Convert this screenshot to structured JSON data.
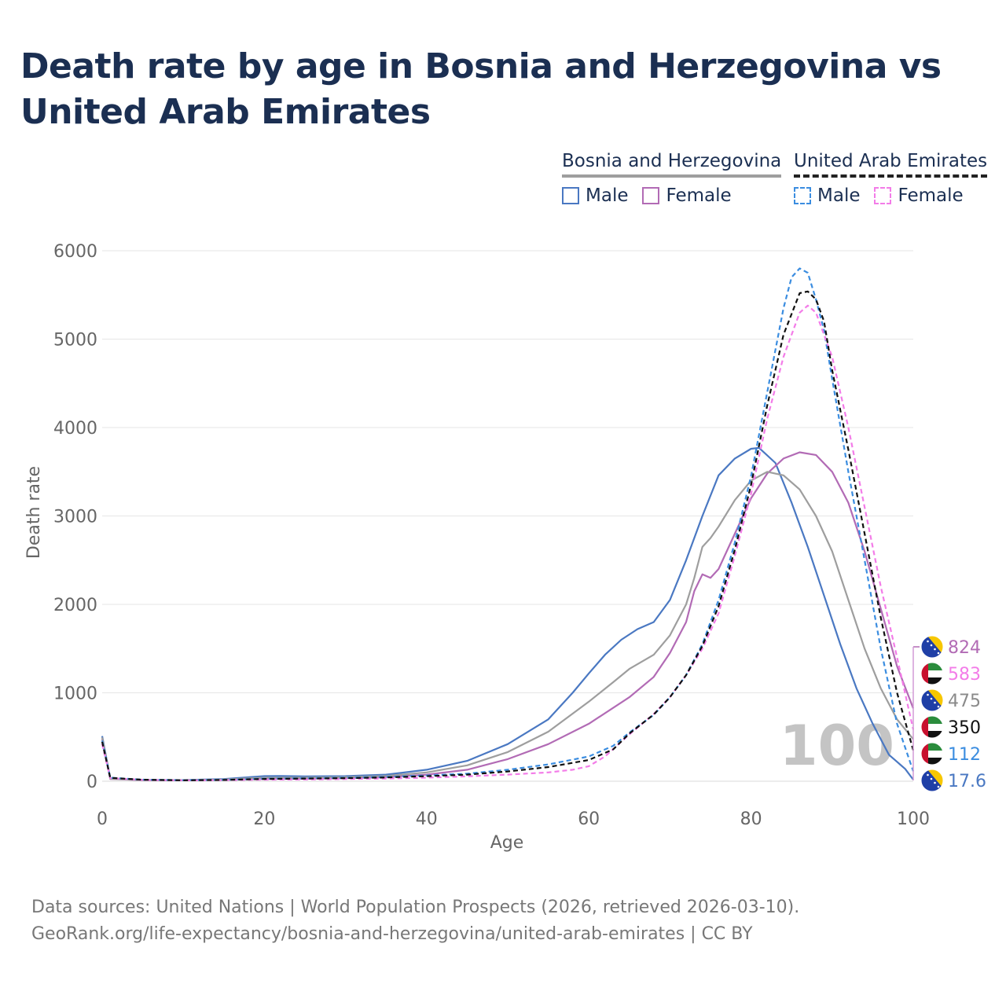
{
  "title": "Death rate by age in Bosnia and Herzegovina vs United Arab Emirates",
  "legend": {
    "bih": {
      "country": "Bosnia and Herzegovina",
      "male": "Male",
      "female": "Female"
    },
    "uae": {
      "country": "United Arab Emirates",
      "male": "Male",
      "female": "Female"
    }
  },
  "footer": {
    "line1": "Data sources: United Nations | World Population Prospects (2026, retrieved 2026-03-10).",
    "line2": "GeoRank.org/life-expectancy/bosnia-and-herzegovina/united-arab-emirates | CC BY"
  },
  "chart_data": {
    "type": "line",
    "title": "Death rate by age in Bosnia and Herzegovina vs United Arab Emirates",
    "xlabel": "Age",
    "ylabel": "Death rate",
    "xlim": [
      0,
      100
    ],
    "ylim": [
      0,
      6000
    ],
    "xticks": [
      0,
      20,
      40,
      60,
      80,
      100
    ],
    "yticks": [
      0,
      1000,
      2000,
      3000,
      4000,
      5000,
      6000
    ],
    "grid": true,
    "age_annotation": "100",
    "series": [
      {
        "name": "Bosnia and Herzegovina Male",
        "color": "#4a78c2",
        "dashed": false,
        "points": [
          [
            0,
            510
          ],
          [
            1,
            30
          ],
          [
            5,
            15
          ],
          [
            10,
            12
          ],
          [
            15,
            25
          ],
          [
            20,
            58
          ],
          [
            22,
            60
          ],
          [
            25,
            55
          ],
          [
            30,
            58
          ],
          [
            35,
            75
          ],
          [
            40,
            130
          ],
          [
            45,
            230
          ],
          [
            50,
            420
          ],
          [
            55,
            700
          ],
          [
            58,
            1000
          ],
          [
            60,
            1220
          ],
          [
            62,
            1430
          ],
          [
            64,
            1600
          ],
          [
            66,
            1720
          ],
          [
            68,
            1800
          ],
          [
            70,
            2050
          ],
          [
            72,
            2500
          ],
          [
            74,
            3000
          ],
          [
            76,
            3460
          ],
          [
            78,
            3650
          ],
          [
            80,
            3760
          ],
          [
            81,
            3770
          ],
          [
            83,
            3600
          ],
          [
            85,
            3150
          ],
          [
            87,
            2650
          ],
          [
            89,
            2100
          ],
          [
            91,
            1550
          ],
          [
            93,
            1050
          ],
          [
            95,
            650
          ],
          [
            97,
            300
          ],
          [
            99,
            140
          ],
          [
            100,
            18
          ]
        ],
        "end_value": "17.6"
      },
      {
        "name": "Bosnia and Herzegovina Female",
        "color": "#b26bb5",
        "dashed": false,
        "points": [
          [
            0,
            480
          ],
          [
            1,
            25
          ],
          [
            5,
            12
          ],
          [
            10,
            10
          ],
          [
            15,
            15
          ],
          [
            20,
            25
          ],
          [
            25,
            28
          ],
          [
            30,
            35
          ],
          [
            35,
            45
          ],
          [
            40,
            75
          ],
          [
            45,
            130
          ],
          [
            50,
            250
          ],
          [
            55,
            420
          ],
          [
            60,
            650
          ],
          [
            65,
            950
          ],
          [
            68,
            1180
          ],
          [
            70,
            1450
          ],
          [
            72,
            1800
          ],
          [
            73,
            2150
          ],
          [
            74,
            2340
          ],
          [
            75,
            2300
          ],
          [
            76,
            2400
          ],
          [
            78,
            2800
          ],
          [
            80,
            3200
          ],
          [
            82,
            3480
          ],
          [
            84,
            3650
          ],
          [
            86,
            3720
          ],
          [
            88,
            3690
          ],
          [
            90,
            3500
          ],
          [
            92,
            3150
          ],
          [
            94,
            2600
          ],
          [
            96,
            1950
          ],
          [
            98,
            1300
          ],
          [
            100,
            824
          ]
        ],
        "end_value": "824"
      },
      {
        "name": "Bosnia and Herzegovina Total",
        "color": "#9e9e9e",
        "dashed": false,
        "points": [
          [
            0,
            495
          ],
          [
            1,
            27
          ],
          [
            5,
            14
          ],
          [
            10,
            11
          ],
          [
            15,
            20
          ],
          [
            20,
            42
          ],
          [
            25,
            42
          ],
          [
            30,
            47
          ],
          [
            35,
            60
          ],
          [
            40,
            100
          ],
          [
            45,
            180
          ],
          [
            50,
            330
          ],
          [
            55,
            560
          ],
          [
            60,
            900
          ],
          [
            63,
            1120
          ],
          [
            65,
            1270
          ],
          [
            68,
            1430
          ],
          [
            70,
            1650
          ],
          [
            72,
            2000
          ],
          [
            73,
            2300
          ],
          [
            74,
            2650
          ],
          [
            75,
            2750
          ],
          [
            76,
            2880
          ],
          [
            78,
            3180
          ],
          [
            80,
            3400
          ],
          [
            82,
            3500
          ],
          [
            84,
            3460
          ],
          [
            86,
            3300
          ],
          [
            88,
            3000
          ],
          [
            90,
            2600
          ],
          [
            92,
            2050
          ],
          [
            94,
            1500
          ],
          [
            96,
            1050
          ],
          [
            98,
            700
          ],
          [
            100,
            475
          ]
        ],
        "end_value": "475"
      },
      {
        "name": "United Arab Emirates Male",
        "color": "#3b8de0",
        "dashed": true,
        "points": [
          [
            0,
            460
          ],
          [
            1,
            40
          ],
          [
            5,
            18
          ],
          [
            10,
            12
          ],
          [
            15,
            15
          ],
          [
            20,
            30
          ],
          [
            25,
            35
          ],
          [
            30,
            40
          ],
          [
            35,
            50
          ],
          [
            40,
            65
          ],
          [
            45,
            85
          ],
          [
            50,
            130
          ],
          [
            55,
            190
          ],
          [
            60,
            280
          ],
          [
            63,
            400
          ],
          [
            65,
            550
          ],
          [
            68,
            750
          ],
          [
            70,
            950
          ],
          [
            72,
            1200
          ],
          [
            74,
            1550
          ],
          [
            76,
            2050
          ],
          [
            78,
            2700
          ],
          [
            80,
            3450
          ],
          [
            82,
            4400
          ],
          [
            84,
            5350
          ],
          [
            85,
            5700
          ],
          [
            86,
            5800
          ],
          [
            87,
            5750
          ],
          [
            88,
            5450
          ],
          [
            89,
            5100
          ],
          [
            90,
            4550
          ],
          [
            92,
            3500
          ],
          [
            94,
            2500
          ],
          [
            96,
            1500
          ],
          [
            98,
            650
          ],
          [
            100,
            112
          ]
        ],
        "end_value": "112"
      },
      {
        "name": "United Arab Emirates Female",
        "color": "#f37ce8",
        "dashed": true,
        "points": [
          [
            0,
            420
          ],
          [
            1,
            35
          ],
          [
            5,
            15
          ],
          [
            10,
            10
          ],
          [
            15,
            12
          ],
          [
            20,
            18
          ],
          [
            25,
            20
          ],
          [
            30,
            25
          ],
          [
            35,
            30
          ],
          [
            40,
            40
          ],
          [
            45,
            55
          ],
          [
            50,
            75
          ],
          [
            55,
            100
          ],
          [
            58,
            130
          ],
          [
            60,
            170
          ],
          [
            62,
            280
          ],
          [
            65,
            530
          ],
          [
            68,
            760
          ],
          [
            70,
            950
          ],
          [
            72,
            1200
          ],
          [
            74,
            1500
          ],
          [
            76,
            1900
          ],
          [
            78,
            2550
          ],
          [
            80,
            3250
          ],
          [
            82,
            4100
          ],
          [
            84,
            4800
          ],
          [
            86,
            5300
          ],
          [
            87,
            5380
          ],
          [
            88,
            5300
          ],
          [
            90,
            4800
          ],
          [
            92,
            4000
          ],
          [
            94,
            3100
          ],
          [
            96,
            2200
          ],
          [
            98,
            1400
          ],
          [
            100,
            583
          ]
        ],
        "end_value": "583"
      },
      {
        "name": "United Arab Emirates Total",
        "color": "#111111",
        "dashed": true,
        "points": [
          [
            0,
            445
          ],
          [
            1,
            38
          ],
          [
            5,
            17
          ],
          [
            10,
            11
          ],
          [
            15,
            14
          ],
          [
            20,
            26
          ],
          [
            25,
            30
          ],
          [
            30,
            35
          ],
          [
            35,
            43
          ],
          [
            40,
            57
          ],
          [
            45,
            75
          ],
          [
            50,
            110
          ],
          [
            55,
            160
          ],
          [
            60,
            240
          ],
          [
            63,
            360
          ],
          [
            65,
            540
          ],
          [
            68,
            755
          ],
          [
            70,
            950
          ],
          [
            72,
            1200
          ],
          [
            74,
            1530
          ],
          [
            76,
            1980
          ],
          [
            78,
            2620
          ],
          [
            80,
            3350
          ],
          [
            82,
            4250
          ],
          [
            84,
            5050
          ],
          [
            86,
            5520
          ],
          [
            87,
            5540
          ],
          [
            88,
            5450
          ],
          [
            89,
            5200
          ],
          [
            90,
            4650
          ],
          [
            92,
            3750
          ],
          [
            94,
            2800
          ],
          [
            96,
            1850
          ],
          [
            98,
            1000
          ],
          [
            100,
            350
          ]
        ],
        "end_value": "350"
      }
    ],
    "end_labels": [
      {
        "value": "824",
        "color": "#b26bb5",
        "flag": "bih"
      },
      {
        "value": "583",
        "color": "#f37ce8",
        "flag": "uae"
      },
      {
        "value": "475",
        "color": "#8a8a8a",
        "flag": "bih"
      },
      {
        "value": "350",
        "color": "#111111",
        "flag": "uae"
      },
      {
        "value": "112",
        "color": "#3b8de0",
        "flag": "uae"
      },
      {
        "value": "17.6",
        "color": "#4a78c2",
        "flag": "bih"
      }
    ]
  }
}
